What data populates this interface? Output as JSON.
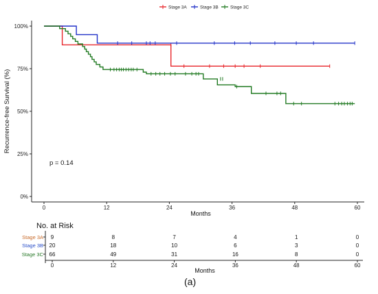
{
  "chart_data": {
    "type": "line",
    "subtype": "kaplan-meier step curve",
    "ylabel": "Recurrence-free Survival (%)",
    "xlabel": "Months",
    "xlim": [
      0,
      60
    ],
    "ylim": [
      0,
      100
    ],
    "x_ticks": [
      0,
      12,
      24,
      36,
      48,
      60
    ],
    "y_ticks": [
      0,
      25,
      50,
      75,
      100
    ],
    "y_tick_labels": [
      "0%",
      "25%",
      "50%",
      "75%",
      "100%"
    ],
    "grid": false,
    "legend_position": "top",
    "annotation": "p = 0.14",
    "series": [
      {
        "name": "Stage 3A",
        "color": "#e8262b",
        "steps": [
          [
            0,
            100
          ],
          [
            3.5,
            100
          ],
          [
            3.5,
            89
          ],
          [
            24.3,
            89
          ],
          [
            24.3,
            76.5
          ],
          [
            54.7,
            76.5
          ]
        ],
        "censored": [
          [
            24.3,
            89
          ],
          [
            26.8,
            76.5
          ],
          [
            31.7,
            76.5
          ],
          [
            34.4,
            76.5
          ],
          [
            36.6,
            76.5
          ],
          [
            38.3,
            76.5
          ],
          [
            41.4,
            76.5
          ],
          [
            54.7,
            76.5
          ]
        ]
      },
      {
        "name": "Stage 3B",
        "color": "#2030c8",
        "steps": [
          [
            0,
            100
          ],
          [
            6.2,
            100
          ],
          [
            6.2,
            95
          ],
          [
            10.2,
            95
          ],
          [
            10.2,
            90
          ],
          [
            59.5,
            90
          ]
        ],
        "censored": [
          [
            14.1,
            90
          ],
          [
            16.8,
            90
          ],
          [
            19.6,
            90
          ],
          [
            20.3,
            90
          ],
          [
            21.3,
            90
          ],
          [
            25.4,
            90
          ],
          [
            32.6,
            90
          ],
          [
            36.5,
            90
          ],
          [
            39.5,
            90
          ],
          [
            44.2,
            90
          ],
          [
            48.3,
            90
          ],
          [
            51.6,
            90
          ],
          [
            59.5,
            90
          ]
        ]
      },
      {
        "name": "Stage 3C",
        "color": "#217a22",
        "steps": [
          [
            0,
            100
          ],
          [
            3.0,
            100
          ],
          [
            3.0,
            98.5
          ],
          [
            4.1,
            98.5
          ],
          [
            4.1,
            97
          ],
          [
            4.6,
            97
          ],
          [
            4.6,
            95.5
          ],
          [
            5.1,
            95.5
          ],
          [
            5.1,
            94
          ],
          [
            5.5,
            94
          ],
          [
            5.5,
            92.5
          ],
          [
            6.0,
            92.5
          ],
          [
            6.0,
            91
          ],
          [
            6.5,
            91
          ],
          [
            6.5,
            89.5
          ],
          [
            7.4,
            89.5
          ],
          [
            7.4,
            88
          ],
          [
            7.8,
            88
          ],
          [
            7.8,
            86.5
          ],
          [
            8.1,
            86.5
          ],
          [
            8.1,
            85
          ],
          [
            8.5,
            85
          ],
          [
            8.5,
            83.5
          ],
          [
            8.9,
            83.5
          ],
          [
            8.9,
            82
          ],
          [
            9.2,
            82
          ],
          [
            9.2,
            80.5
          ],
          [
            9.6,
            80.5
          ],
          [
            9.6,
            79
          ],
          [
            10.0,
            79
          ],
          [
            10.0,
            77.5
          ],
          [
            10.7,
            77.5
          ],
          [
            10.7,
            76
          ],
          [
            11.3,
            76
          ],
          [
            11.3,
            74.5
          ],
          [
            19.0,
            74.5
          ],
          [
            19.0,
            73
          ],
          [
            19.6,
            73
          ],
          [
            19.6,
            72
          ],
          [
            30.5,
            72
          ],
          [
            30.5,
            69
          ],
          [
            33.2,
            69
          ],
          [
            33.2,
            65.5
          ],
          [
            36.6,
            65.5
          ],
          [
            36.6,
            64.5
          ],
          [
            39.7,
            64.5
          ],
          [
            39.7,
            60.5
          ],
          [
            46.3,
            60.5
          ],
          [
            46.3,
            54.5
          ],
          [
            59.5,
            54.5
          ]
        ],
        "censored": [
          [
            12.7,
            74.5
          ],
          [
            13.4,
            74.5
          ],
          [
            13.9,
            74.5
          ],
          [
            14.4,
            74.5
          ],
          [
            14.8,
            74.5
          ],
          [
            15.2,
            74.5
          ],
          [
            15.7,
            74.5
          ],
          [
            16.2,
            74.5
          ],
          [
            16.7,
            74.5
          ],
          [
            17.1,
            74.5
          ],
          [
            17.8,
            74.5
          ],
          [
            20.5,
            72
          ],
          [
            21.4,
            72
          ],
          [
            22.2,
            72
          ],
          [
            23.1,
            72
          ],
          [
            24.2,
            72
          ],
          [
            25.1,
            72
          ],
          [
            27.1,
            72
          ],
          [
            28.3,
            72
          ],
          [
            29.1,
            72
          ],
          [
            29.6,
            72
          ],
          [
            33.8,
            69
          ],
          [
            34.2,
            69
          ],
          [
            36.9,
            64.5
          ],
          [
            42.5,
            60.5
          ],
          [
            44.6,
            60.5
          ],
          [
            45.3,
            60.5
          ],
          [
            47.8,
            54.5
          ],
          [
            49.3,
            54.5
          ],
          [
            55.7,
            54.5
          ],
          [
            56.4,
            54.5
          ],
          [
            57.0,
            54.5
          ],
          [
            57.5,
            54.5
          ],
          [
            58.1,
            54.5
          ],
          [
            58.6,
            54.5
          ],
          [
            59.0,
            54.5
          ]
        ]
      }
    ],
    "risk_table": {
      "title": "No. at Risk",
      "time_points": [
        0,
        12,
        24,
        36,
        48,
        60
      ],
      "xlabel": "Months",
      "rows": [
        {
          "label": "Stage 3A",
          "color": "#c86a2a",
          "counts": [
            "9",
            "8",
            "7",
            "4",
            "1",
            "0"
          ]
        },
        {
          "label": "Stage 3B",
          "color": "#2a4fc8",
          "counts": [
            "20",
            "18",
            "10",
            "6",
            "3",
            "0"
          ]
        },
        {
          "label": "Stage 3C",
          "color": "#2a7a2a",
          "counts": [
            "66",
            "49",
            "31",
            "16",
            "8",
            "0"
          ]
        }
      ]
    }
  },
  "figure_label": "(a)"
}
